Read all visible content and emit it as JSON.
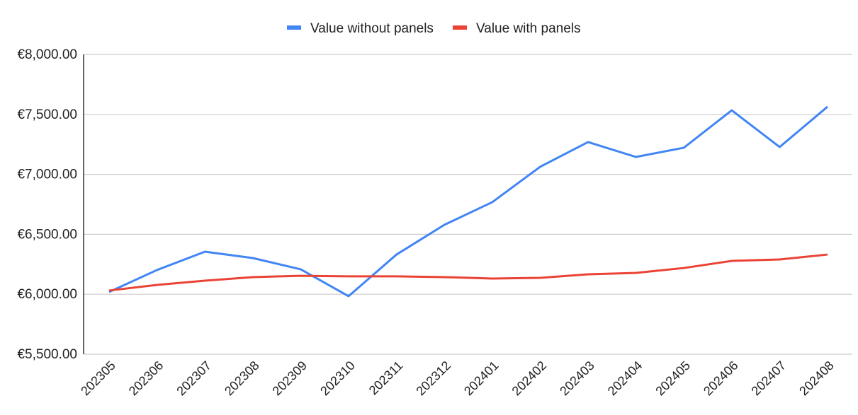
{
  "chart_data": {
    "type": "line",
    "title": "",
    "xlabel": "",
    "ylabel": "",
    "categories": [
      "202305",
      "202306",
      "202307",
      "202308",
      "202309",
      "202310",
      "202311",
      "202312",
      "202401",
      "202402",
      "202403",
      "202404",
      "202405",
      "202406",
      "202407",
      "202408"
    ],
    "series": [
      {
        "name": "Value without panels",
        "color": "#4285f4",
        "values": [
          6019,
          6202,
          6355,
          6302,
          6208,
          5984,
          6331,
          6579,
          6768,
          7063,
          7269,
          7145,
          7222,
          7534,
          7228,
          7564
        ]
      },
      {
        "name": "Value with panels",
        "color": "#ea4335",
        "values": [
          6031,
          6078,
          6113,
          6143,
          6154,
          6149,
          6149,
          6143,
          6131,
          6137,
          6166,
          6178,
          6219,
          6278,
          6290,
          6331
        ]
      }
    ],
    "ylim": [
      5500,
      8000
    ],
    "yticks": [
      5500,
      6000,
      6500,
      7000,
      7500,
      8000
    ],
    "ytick_labels": [
      "€5,500.00",
      "€6,000.00",
      "€6,500.00",
      "€7,000.00",
      "€7,500.00",
      "€8,000.00"
    ],
    "grid": true,
    "legend_position": "top-center"
  }
}
